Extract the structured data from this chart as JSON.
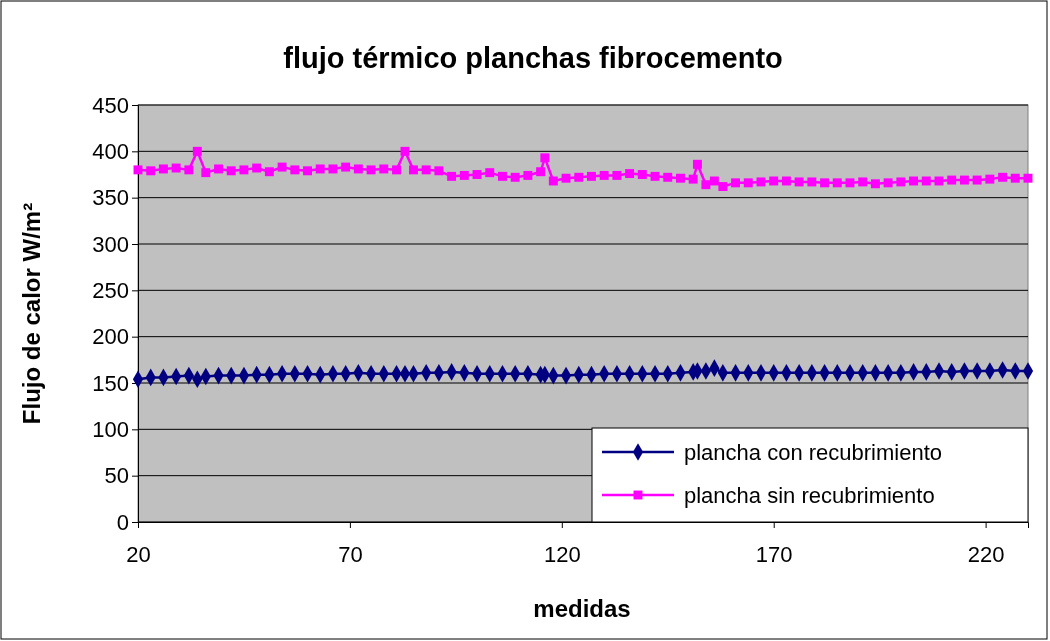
{
  "chart_data": {
    "type": "line",
    "title": "flujo térmico planchas fibrocemento",
    "xlabel": "medidas",
    "ylabel": "Flujo de calor W/m²",
    "x": [
      20,
      23,
      26,
      29,
      32,
      34,
      36,
      39,
      42,
      45,
      48,
      51,
      54,
      57,
      60,
      63,
      66,
      69,
      72,
      75,
      78,
      81,
      83,
      85,
      88,
      91,
      94,
      97,
      100,
      103,
      106,
      109,
      112,
      115,
      116,
      118,
      121,
      124,
      127,
      130,
      133,
      136,
      139,
      142,
      145,
      148,
      151,
      152,
      154,
      156,
      158,
      161,
      164,
      167,
      170,
      173,
      176,
      179,
      182,
      185,
      188,
      191,
      194,
      197,
      200,
      203,
      206,
      209,
      212,
      215,
      218,
      221,
      224,
      227,
      230
    ],
    "series": [
      {
        "name": "plancha con recubrimiento",
        "color": "#000080",
        "marker": "diamond",
        "values": [
          154,
          156,
          156,
          157,
          158,
          154,
          157,
          158,
          158,
          158,
          159,
          159,
          160,
          160,
          160,
          159,
          160,
          160,
          161,
          160,
          160,
          160,
          160,
          160,
          161,
          161,
          162,
          161,
          160,
          160,
          160,
          160,
          160,
          159,
          159,
          158,
          158,
          159,
          159,
          160,
          160,
          160,
          160,
          160,
          160,
          161,
          162,
          163,
          163,
          166,
          161,
          161,
          161,
          161,
          161,
          161,
          161,
          161,
          161,
          161,
          161,
          161,
          161,
          161,
          161,
          162,
          162,
          163,
          162,
          163,
          163,
          163,
          164,
          163,
          163
        ]
      },
      {
        "name": "plancha sin recubrimiento",
        "color": "#ff00ff",
        "marker": "square",
        "values": [
          380,
          379,
          381,
          382,
          380,
          400,
          377,
          381,
          379,
          380,
          382,
          378,
          383,
          380,
          379,
          381,
          381,
          383,
          381,
          380,
          381,
          380,
          400,
          380,
          380,
          379,
          373,
          374,
          375,
          377,
          373,
          372,
          374,
          378,
          393,
          368,
          371,
          372,
          373,
          374,
          374,
          376,
          375,
          373,
          372,
          371,
          370,
          386,
          364,
          368,
          362,
          366,
          366,
          367,
          368,
          368,
          367,
          367,
          366,
          366,
          366,
          367,
          365,
          366,
          367,
          368,
          368,
          368,
          369,
          369,
          369,
          370,
          372,
          371,
          371
        ]
      }
    ],
    "xlim": [
      20,
      230
    ],
    "xticks": [
      20,
      70,
      120,
      170,
      220
    ],
    "ylim": [
      0,
      450
    ],
    "yticks": [
      0,
      50,
      100,
      150,
      200,
      250,
      300,
      350,
      400,
      450
    ],
    "grid": "y",
    "legend": "bottom right",
    "line_style": "solid"
  }
}
